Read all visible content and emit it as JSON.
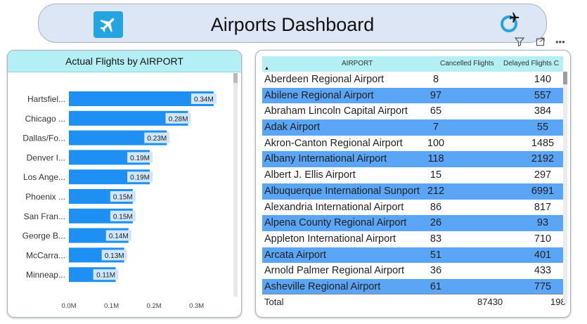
{
  "header": {
    "title": "Airports Dashboard"
  },
  "icons": {
    "left": "airplane-icon",
    "right": "airplane-circle-icon",
    "filter": "filter-icon",
    "focus": "focus-mode-icon",
    "more": "more-options-icon"
  },
  "colors": {
    "bar": "#1e90f4",
    "header_fill": "#b3eff4",
    "row_highlight": "#5aa5f5",
    "label_badge": "#cfe6fb"
  },
  "bar_chart": {
    "title": "Actual Flights by AIRPORT"
  },
  "chart_data": {
    "type": "bar",
    "orientation": "horizontal",
    "title": "Actual Flights by AIRPORT",
    "categories": [
      "Hartsfiel...",
      "Chicago ...",
      "Dallas/Fo...",
      "Denver I...",
      "Los Ange...",
      "Phoenix ...",
      "San Fran...",
      "George B...",
      "McCarra...",
      "Minneap..."
    ],
    "values": [
      340000,
      280000,
      230000,
      190000,
      190000,
      150000,
      150000,
      140000,
      130000,
      110000
    ],
    "data_labels": [
      "0.34M",
      "0.28M",
      "0.23M",
      "0.19M",
      "0.19M",
      "0.15M",
      "0.15M",
      "0.14M",
      "0.13M",
      "0.11M"
    ],
    "x_ticks": [
      "0.0M",
      "0.1M",
      "0.2M",
      "0.3M"
    ],
    "x_tick_values": [
      0,
      100000,
      200000,
      300000
    ],
    "xlim": [
      0,
      360000
    ],
    "grid": false
  },
  "table": {
    "columns": [
      "AIRPORT",
      "Cancelled Flights",
      "Delayed Flights C"
    ],
    "rows": [
      [
        "Aberdeen Regional Airport",
        "8",
        "140"
      ],
      [
        "Abilene Regional Airport",
        "97",
        "557"
      ],
      [
        "Abraham Lincoln Capital Airport",
        "65",
        "384"
      ],
      [
        "Adak Airport",
        "7",
        "55"
      ],
      [
        "Akron-Canton Regional Airport",
        "100",
        "1485"
      ],
      [
        "Albany International Airport",
        "118",
        "2192"
      ],
      [
        "Albert J. Ellis Airport",
        "15",
        "297"
      ],
      [
        "Albuquerque International Sunport",
        "212",
        "6991"
      ],
      [
        "Alexandria International Airport",
        "86",
        "817"
      ],
      [
        "Alpena County Regional Airport",
        "26",
        "93"
      ],
      [
        "Appleton International Airport",
        "83",
        "710"
      ],
      [
        "Arcata Airport",
        "51",
        "401"
      ],
      [
        "Arnold Palmer Regional Airport",
        "36",
        "433"
      ],
      [
        "Asheville Regional Airport",
        "61",
        "775"
      ]
    ],
    "total": {
      "label": "Total",
      "cancelled": "87430",
      "delayed": "198"
    }
  }
}
